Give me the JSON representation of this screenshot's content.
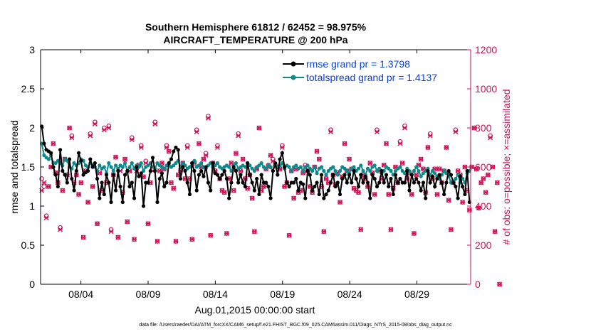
{
  "chart_data": {
    "type": "line",
    "title": "Southern Hemisphere 61812 / 62452 = 98.975%",
    "subtitle": "AIRCRAFT_TEMPERATURE @ 200 hPa",
    "xlabel": "Aug.01,2015 00:00:00 start",
    "ylabel_left": "rmse and totalspread",
    "ylabel_right": "# of obs: o=possible; ×=assimilated",
    "footnote": "data file: /Users/raeder/DAI/ATM_forcXX/CAM6_setup/f.e21.FHIST_BGC.f09_025.CAM6assim.011/Diags_NTrS_2015-08/obs_diag_output.nc",
    "x_tick_labels": [
      "08/04",
      "08/09",
      "08/14",
      "08/19",
      "08/24",
      "08/29"
    ],
    "x_tick_values": [
      4,
      9,
      14,
      19,
      24,
      29
    ],
    "xlim": [
      1,
      33
    ],
    "ylim_left": [
      0,
      3
    ],
    "ylim_right": [
      0,
      1200
    ],
    "yticks_left": [
      "0",
      "0.5",
      "1",
      "1.5",
      "2",
      "2.5",
      "3"
    ],
    "yticks_right": [
      "0",
      "200",
      "400",
      "600",
      "800",
      "1000",
      "1200"
    ],
    "colors": {
      "rmse": "#000000",
      "spread": "#0f8a8a",
      "obs": "#cc1155",
      "legend_text": "#0a3fe0"
    },
    "series": [
      {
        "name": "rmse grand pr = 1.3798",
        "values": [
          2.02,
          1.8,
          1.72,
          1.7,
          1.68,
          1.5,
          1.4,
          1.25,
          1.72,
          1.45,
          1.4,
          1.3,
          1.6,
          1.35,
          1.2,
          1.45,
          1.68,
          1.58,
          1.4,
          1.43,
          1.45,
          1.6,
          1.5,
          1.55,
          1.35,
          1.1,
          1.3,
          1.15,
          1.4,
          1.3,
          1.05,
          1.4,
          1.2,
          1.45,
          1.25,
          1.05,
          1.4,
          1.45,
          1.25,
          1.3,
          1.1,
          1.5,
          1.38,
          1.42,
          1.0,
          1.3,
          1.3,
          1.45,
          1.62,
          1.45,
          1.05,
          1.35,
          1.42,
          1.25,
          1.3,
          1.55,
          1.6,
          1.7,
          1.75,
          1.72,
          1.35,
          1.5,
          1.45,
          1.3,
          1.15,
          1.55,
          1.45,
          1.2,
          1.4,
          1.45,
          1.38,
          1.5,
          1.3,
          1.2,
          1.55,
          1.42,
          1.4,
          1.35,
          1.4,
          1.45,
          1.35,
          1.1,
          1.3,
          1.5,
          1.45,
          1.3,
          1.4,
          1.3,
          1.25,
          1.55,
          1.4,
          1.3,
          1.2,
          1.35,
          1.15,
          1.4,
          1.3,
          1.3,
          1.25,
          1.1,
          1.45,
          1.55,
          1.4,
          1.6,
          1.68,
          1.5,
          1.3,
          1.25,
          1.3,
          1.3,
          1.35,
          1.2,
          1.3,
          1.28,
          1.1,
          1.45,
          1.4,
          1.2,
          1.25,
          1.3,
          1.15,
          1.4,
          1.1,
          1.15,
          1.2,
          1.3,
          1.4,
          1.25,
          1.3,
          1.15,
          1.35,
          1.4,
          1.3,
          1.4,
          1.3,
          1.45,
          1.35,
          1.25,
          1.4,
          1.3,
          1.38,
          1.3,
          1.1,
          1.4,
          1.35,
          1.25,
          1.3,
          1.45,
          1.3,
          1.4,
          1.25,
          1.35,
          1.15,
          1.4,
          1.3,
          1.35,
          1.3,
          1.3,
          1.45,
          1.2,
          1.4,
          1.3,
          1.35,
          1.3,
          1.2,
          1.3,
          1.1,
          1.45,
          1.3,
          1.38,
          1.25,
          1.35,
          1.4,
          1.3,
          1.15,
          1.3,
          1.45,
          1.4,
          1.3,
          1.25,
          1.1,
          1.38,
          1.25,
          1.15,
          1.45,
          1.05
        ]
      },
      {
        "name": "totalspread grand pr = 1.4137",
        "values": [
          1.8,
          1.65,
          1.62,
          1.6,
          1.65,
          1.55,
          1.55,
          1.58,
          1.55,
          1.52,
          1.6,
          1.58,
          1.5,
          1.48,
          1.55,
          1.52,
          1.55,
          1.6,
          1.58,
          1.52,
          1.5,
          1.55,
          1.52,
          1.5,
          1.45,
          1.52,
          1.48,
          1.5,
          1.42,
          1.55,
          1.5,
          1.45,
          1.52,
          1.48,
          1.52,
          1.5,
          1.55,
          1.45,
          1.5,
          1.55,
          1.48,
          1.52,
          1.5,
          1.55,
          1.45,
          1.5,
          1.52,
          1.55,
          1.5,
          1.48,
          1.55,
          1.52,
          1.5,
          1.48,
          1.52,
          1.55,
          1.5,
          1.52,
          1.55,
          1.58,
          1.5,
          1.55,
          1.52,
          1.48,
          1.5,
          1.55,
          1.58,
          1.5,
          1.52,
          1.55,
          1.5,
          1.48,
          1.52,
          1.55,
          1.5,
          1.52,
          1.55,
          1.5,
          1.48,
          1.5,
          1.52,
          1.5,
          1.45,
          1.52,
          1.55,
          1.48,
          1.5,
          1.52,
          1.5,
          1.55,
          1.52,
          1.48,
          1.45,
          1.5,
          1.52,
          1.55,
          1.5,
          1.48,
          1.52,
          1.5,
          1.45,
          1.55,
          1.5,
          1.52,
          1.55,
          1.48,
          1.52,
          1.5,
          1.45,
          1.5,
          1.52,
          1.48,
          1.5,
          1.45,
          1.5,
          1.52,
          1.48,
          1.45,
          1.5,
          1.42,
          1.48,
          1.5,
          1.45,
          1.4,
          1.45,
          1.48,
          1.5,
          1.45,
          1.4,
          1.45,
          1.5,
          1.48,
          1.45,
          1.42,
          1.48,
          1.5,
          1.45,
          1.48,
          1.52,
          1.45,
          1.4,
          1.48,
          1.45,
          1.5,
          1.52,
          1.45,
          1.48,
          1.42,
          1.45,
          1.5,
          1.48,
          1.45,
          1.4,
          1.45,
          1.48,
          1.5,
          1.45,
          1.42,
          1.48,
          1.45,
          1.4,
          1.45,
          1.5,
          1.45,
          1.38,
          1.42,
          1.45,
          1.48,
          1.4,
          1.45,
          1.42,
          1.38,
          1.35,
          1.4,
          1.45,
          1.42,
          1.38,
          1.3,
          1.32,
          1.35,
          1.4,
          1.3,
          1.35,
          1.3,
          1.42,
          1.45
        ]
      },
      {
        "name": "# of obs (assimilated)",
        "axis": "right",
        "values": [
          480,
          520,
          340,
          500,
          600,
          720,
          570,
          520,
          280,
          480,
          640,
          560,
          800,
          750,
          520,
          560,
          460,
          520,
          240,
          580,
          420,
          760,
          500,
          820,
          310,
          570,
          480,
          790,
          520,
          800,
          270,
          560,
          650,
          240,
          580,
          470,
          640,
          320,
          580,
          740,
          230,
          580,
          610,
          700,
          550,
          620,
          310,
          520,
          580,
          820,
          220,
          580,
          620,
          590,
          700,
          680,
          520,
          490,
          220,
          560,
          580,
          620,
          540,
          700,
          540,
          230,
          620,
          780,
          720,
          600,
          640,
          660,
          850,
          250,
          620,
          580,
          700,
          540,
          480,
          470,
          260,
          540,
          620,
          480,
          670,
          760,
          580,
          640,
          540,
          490,
          560,
          440,
          270,
          590,
          800,
          480,
          500,
          590,
          600,
          660,
          630,
          600,
          600,
          590,
          700,
          500,
          520,
          250,
          580,
          440,
          590,
          470,
          480,
          570,
          600,
          580,
          500,
          470,
          600,
          680,
          640,
          500,
          270,
          540,
          520,
          780,
          560,
          510,
          570,
          420,
          550,
          720,
          580,
          640,
          590,
          490,
          480,
          470,
          280,
          560,
          540,
          500,
          620,
          570,
          460,
          780,
          580,
          540,
          610,
          720,
          460,
          280,
          490,
          600,
          520,
          720,
          620,
          800,
          540,
          570,
          460,
          260,
          560,
          610,
          640,
          590,
          470,
          700,
          760,
          540,
          590,
          460,
          590,
          520,
          580,
          700,
          430,
          280,
          520,
          780,
          580,
          560,
          420,
          600,
          480,
          380,
          600,
          800,
          590,
          390,
          520,
          540,
          470,
          560,
          750,
          600,
          270,
          520,
          0
        ]
      },
      {
        "name": "# of obs (possible)",
        "axis": "right",
        "values": [
          540,
          500,
          350,
          500,
          600,
          720,
          570,
          520,
          290,
          480,
          640,
          560,
          800,
          760,
          520,
          560,
          460,
          520,
          240,
          580,
          420,
          770,
          500,
          830,
          310,
          570,
          480,
          800,
          520,
          810,
          280,
          560,
          650,
          240,
          590,
          470,
          640,
          320,
          580,
          750,
          230,
          590,
          610,
          710,
          550,
          630,
          310,
          520,
          590,
          830,
          220,
          580,
          620,
          590,
          710,
          680,
          520,
          490,
          220,
          560,
          580,
          620,
          540,
          710,
          540,
          230,
          620,
          790,
          720,
          600,
          640,
          670,
          860,
          250,
          620,
          580,
          710,
          540,
          480,
          470,
          260,
          540,
          620,
          480,
          670,
          770,
          580,
          640,
          540,
          490,
          560,
          440,
          270,
          590,
          800,
          480,
          500,
          590,
          610,
          660,
          640,
          610,
          600,
          590,
          710,
          500,
          520,
          250,
          580,
          440,
          590,
          470,
          480,
          570,
          610,
          580,
          500,
          470,
          600,
          680,
          640,
          500,
          270,
          540,
          520,
          790,
          560,
          510,
          570,
          420,
          550,
          720,
          580,
          640,
          590,
          490,
          480,
          470,
          280,
          560,
          540,
          500,
          620,
          570,
          460,
          790,
          580,
          540,
          610,
          720,
          460,
          280,
          490,
          600,
          520,
          730,
          620,
          810,
          540,
          570,
          460,
          260,
          560,
          610,
          640,
          590,
          470,
          700,
          770,
          540,
          590,
          460,
          590,
          520,
          580,
          700,
          430,
          280,
          520,
          790,
          580,
          560,
          420,
          600,
          480,
          380,
          600,
          800,
          590,
          390,
          520,
          540,
          470,
          560,
          760,
          600,
          270,
          520,
          0
        ]
      }
    ]
  }
}
